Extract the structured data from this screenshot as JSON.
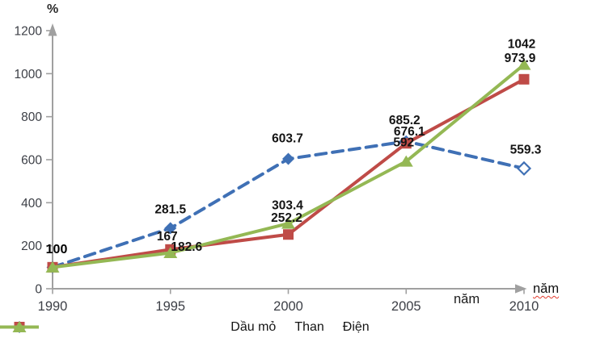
{
  "chart_data": {
    "type": "line",
    "title": "",
    "ylabel": "%",
    "xlabel": "năm",
    "xlabel_right": "năm",
    "x_categories": [
      "1990",
      "1995",
      "2000",
      "2005",
      "2010"
    ],
    "y_ticks": [
      "0",
      "200",
      "400",
      "600",
      "800",
      "1000",
      "1200"
    ],
    "ylim": [
      0,
      1200
    ],
    "grid": false,
    "legend_position": "bottom",
    "axis_color": "#a0a0a0",
    "label_color": "#141414",
    "series": [
      {
        "name": "Dầu mỏ",
        "color": "#3f70b5",
        "line_style": "dashed",
        "marker": "diamond",
        "values": [
          100,
          281.5,
          603.7,
          685.2,
          559.3
        ],
        "labels": [
          "100",
          "281.5",
          "603.7",
          "685.2",
          "559.3"
        ],
        "hollow_marker_indices": [
          4
        ]
      },
      {
        "name": "Than",
        "color": "#bf4b47",
        "line_style": "solid",
        "marker": "square",
        "values": [
          100,
          182.6,
          252.2,
          676.1,
          973.9
        ],
        "labels": [
          "",
          "182.6",
          "252.2",
          "676.1",
          "973.9"
        ],
        "hollow_marker_indices": []
      },
      {
        "name": "Điện",
        "color": "#94b854",
        "line_style": "solid",
        "marker": "triangle",
        "values": [
          100,
          167,
          303.4,
          592,
          1042
        ],
        "labels": [
          "",
          "167",
          "303.4",
          "592",
          "1042"
        ],
        "hollow_marker_indices": []
      }
    ]
  }
}
